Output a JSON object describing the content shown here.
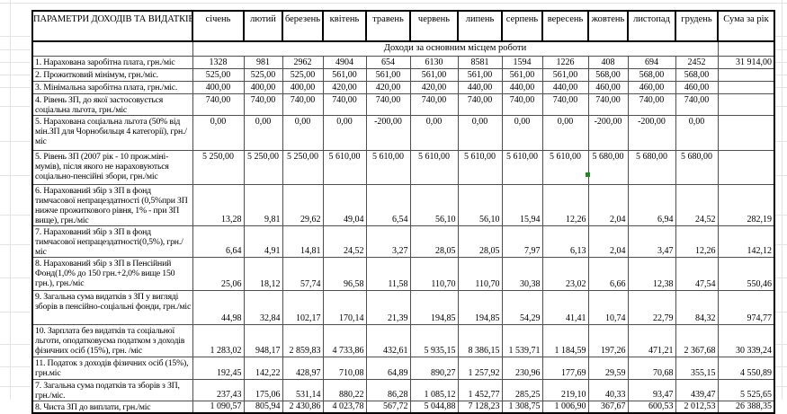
{
  "table": {
    "corner_header": "ПАРАМЕТРИ ДОХОДІВ ТА ВИДАТКІВ",
    "months": [
      "січень",
      "лютий",
      "березень",
      "квітень",
      "травень",
      "червень",
      "липень",
      "серпень",
      "вересень",
      "жовтень",
      "листопад",
      "грудень"
    ],
    "sum_header": "Сума за рік",
    "section_header": "Доходи за основним місцем роботи",
    "rows": [
      {
        "label": "1. Нарахована заробітна плата, грн./міс",
        "values": [
          "1328",
          "981",
          "2962",
          "4904",
          "654",
          "6130",
          "8581",
          "1594",
          "1226",
          "408",
          "694",
          "2452"
        ],
        "sum": "31 914,00"
      },
      {
        "label": "2. Прожитковий мінімум, грн./міс.",
        "values": [
          "525,00",
          "525,00",
          "525,00",
          "561,00",
          "561,00",
          "561,00",
          "561,00",
          "561,00",
          "561,00",
          "568,00",
          "568,00",
          "568,00"
        ],
        "sum": ""
      },
      {
        "label": "3. Мінімальна заробітна плата, грн./міс.",
        "values": [
          "400,00",
          "400,00",
          "400,00",
          "420,00",
          "420,00",
          "420,00",
          "440,00",
          "440,00",
          "440,00",
          "460,00",
          "460,00",
          "460,00"
        ],
        "sum": ""
      },
      {
        "label": "4. Рівень ЗП, до якої застосовується соціальна льгота, грн./міс",
        "values": [
          "740,00",
          "740,00",
          "740,00",
          "740,00",
          "740,00",
          "740,00",
          "740,00",
          "740,00",
          "740,00",
          "740,00",
          "740,00",
          "740,00"
        ],
        "sum": ""
      },
      {
        "label": "5. Нарахована соціальна льгота (50% від мін.ЗП для Чорнобильця 4 категорії), грн./міс",
        "values": [
          "0,00",
          "0,00",
          "0,00",
          "0,00",
          "-200,00",
          "0,00",
          "0,00",
          "0,00",
          "0,00",
          "-200,00",
          "-200,00",
          "0,00"
        ],
        "sum": ""
      },
      {
        "label": "5. Рівень ЗП (2007 рік - 10 прож.міні-мумів), після якого не нараховуються соціально-пенсійні збори, грн./міс",
        "values": [
          "5 250,00",
          "5 250,00",
          "5 250,00",
          "5 610,00",
          "5 610,00",
          "5 610,00",
          "5 610,00",
          "5 610,00",
          "5 610,00",
          "5 680,00",
          "5 680,00",
          "5 680,00"
        ],
        "sum": ""
      },
      {
        "label": "6. Нарахований збір з ЗП в фонд тимчасової непрацездатності (0,5%при ЗП нижче прожиткового рівня, 1% - при ЗП вище), грн./міс",
        "values": [
          "13,28",
          "9,81",
          "29,62",
          "49,04",
          "6,54",
          "56,10",
          "56,10",
          "15,94",
          "12,26",
          "2,04",
          "6,94",
          "24,52"
        ],
        "sum": "282,19"
      },
      {
        "label": "7. Нарахований збір з ЗП в фонд тимчасової непрацездатності(0,5%), грн./міс",
        "values": [
          "6,64",
          "4,91",
          "14,81",
          "24,52",
          "3,27",
          "28,05",
          "28,05",
          "7,97",
          "6,13",
          "2,04",
          "3,47",
          "12,26"
        ],
        "sum": "142,12"
      },
      {
        "label": "8. Нарахований збір з ЗП в Пенсійний Фонд(1,0% до 150 грн.+2,0% вище 150 грн.), грн./міс",
        "values": [
          "25,06",
          "18,12",
          "57,74",
          "96,58",
          "11,58",
          "110,70",
          "110,70",
          "30,38",
          "23,02",
          "6,66",
          "12,38",
          "47,54"
        ],
        "sum": "550,46"
      },
      {
        "label": "9. Загальна сума видатків з ЗП у вигляді зборів в пенсійно-соціальні фонди, грн./міс",
        "values": [
          "44,98",
          "32,84",
          "102,17",
          "170,14",
          "21,39",
          "194,85",
          "194,85",
          "54,29",
          "41,41",
          "10,74",
          "22,79",
          "84,32"
        ],
        "sum": "974,77"
      },
      {
        "label": "10. Зарплата без видатків та соціальної льготи, оподатковуєма податком з доходів фізичних осіб (15%), грн. /міс",
        "values": [
          "1 283,02",
          "948,17",
          "2 859,83",
          "4 733,86",
          "432,61",
          "5 935,15",
          "8 386,15",
          "1 539,71",
          "1 184,59",
          "197,26",
          "471,21",
          "2 367,68"
        ],
        "sum": "30 339,24"
      },
      {
        "label": "11. Податок з доходів фізичних осіб (15%), грн.міс",
        "values": [
          "192,45",
          "142,22",
          "428,97",
          "710,08",
          "64,89",
          "890,27",
          "1 257,92",
          "230,96",
          "177,69",
          "29,59",
          "70,68",
          "355,15"
        ],
        "sum": "4 550,89"
      },
      {
        "label": "7. Загальна сума податків та зборів з ЗП, грн./міс.",
        "values": [
          "237,43",
          "175,06",
          "531,14",
          "880,22",
          "86,28",
          "1 085,12",
          "1 452,77",
          "285,25",
          "219,10",
          "40,33",
          "93,47",
          "439,47"
        ],
        "sum": "5 525,65"
      },
      {
        "label": "8. Чиста ЗП до виплати, грн./міс",
        "values": [
          "1 090,57",
          "805,94",
          "2 430,86",
          "4 023,78",
          "567,72",
          "5 044,88",
          "7 128,23",
          "1 308,75",
          "1 006,90",
          "367,67",
          "600,53",
          "2 012,53"
        ],
        "sum": "26 388,35"
      }
    ]
  },
  "comment_marker": {
    "color": "#1c8a1c"
  }
}
